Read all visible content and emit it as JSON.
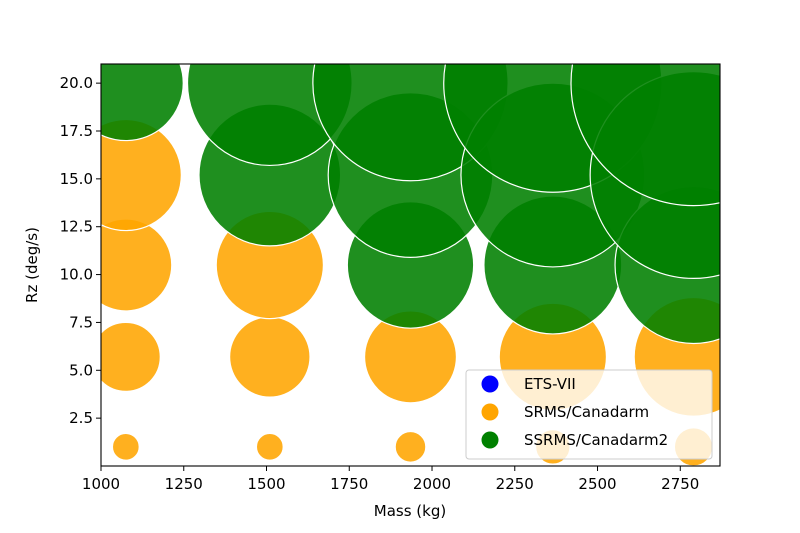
{
  "chart_data": {
    "type": "scatter",
    "subtype": "bubble",
    "title": "",
    "xlabel": "Mass (kg)",
    "ylabel": "Rz (deg/s)",
    "xlim": [
      1000,
      2870
    ],
    "ylim": [
      0,
      21
    ],
    "xticks": [
      1000,
      1250,
      1500,
      1750,
      2000,
      2250,
      2500,
      2750
    ],
    "yticks": [
      2.5,
      5.0,
      7.5,
      10.0,
      12.5,
      15.0,
      17.5,
      20.0
    ],
    "xtick_labels": [
      "1000",
      "1250",
      "1500",
      "1750",
      "2000",
      "2250",
      "2500",
      "2750"
    ],
    "ytick_labels": [
      "2.5",
      "5.0",
      "7.5",
      "10.0",
      "12.5",
      "15.0",
      "17.5",
      "20.0"
    ],
    "grid": false,
    "legend_position": "lower-right",
    "series": [
      {
        "name": "ETS-VII",
        "color": "#0000ff",
        "points": []
      },
      {
        "name": "SRMS/Canadarm",
        "color": "#ffa500",
        "points": [
          {
            "x": 1075,
            "y": 1.0,
            "r": 0.7
          },
          {
            "x": 1075,
            "y": 5.7,
            "r": 1.8
          },
          {
            "x": 1075,
            "y": 10.5,
            "r": 2.4
          },
          {
            "x": 1075,
            "y": 15.2,
            "r": 2.9
          },
          {
            "x": 1510,
            "y": 1.0,
            "r": 0.7
          },
          {
            "x": 1510,
            "y": 5.7,
            "r": 2.1
          },
          {
            "x": 1510,
            "y": 10.5,
            "r": 2.8
          },
          {
            "x": 1935,
            "y": 1.0,
            "r": 0.8
          },
          {
            "x": 1935,
            "y": 5.7,
            "r": 2.4
          },
          {
            "x": 2365,
            "y": 1.0,
            "r": 0.9
          },
          {
            "x": 2365,
            "y": 5.7,
            "r": 2.8
          },
          {
            "x": 2790,
            "y": 1.0,
            "r": 1.0
          },
          {
            "x": 2790,
            "y": 5.7,
            "r": 3.1
          }
        ]
      },
      {
        "name": "SSRMS/Canadarm2",
        "color": "#008000",
        "points": [
          {
            "x": 1075,
            "y": 20.0,
            "r": 3.0
          },
          {
            "x": 1510,
            "y": 15.2,
            "r": 3.7
          },
          {
            "x": 1510,
            "y": 20.0,
            "r": 4.3
          },
          {
            "x": 1935,
            "y": 10.5,
            "r": 3.3
          },
          {
            "x": 1935,
            "y": 15.2,
            "r": 4.3
          },
          {
            "x": 1935,
            "y": 20.0,
            "r": 5.1
          },
          {
            "x": 2365,
            "y": 10.5,
            "r": 3.6
          },
          {
            "x": 2365,
            "y": 15.2,
            "r": 4.8
          },
          {
            "x": 2365,
            "y": 20.0,
            "r": 5.7
          },
          {
            "x": 2790,
            "y": 10.5,
            "r": 4.1
          },
          {
            "x": 2790,
            "y": 15.2,
            "r": 5.4
          },
          {
            "x": 2790,
            "y": 20.0,
            "r": 6.4
          }
        ]
      }
    ]
  }
}
